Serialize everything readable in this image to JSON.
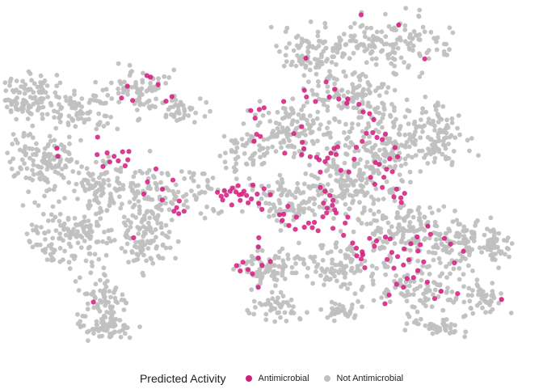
{
  "chart_data": {
    "type": "scatter",
    "title": "",
    "xlabel": "",
    "ylabel": "",
    "grid": false,
    "legend_placement": "bottom",
    "xlim": [
      0,
      100
    ],
    "ylim": [
      0,
      100
    ],
    "legend": {
      "title": "Predicted Activity"
    },
    "series": [
      {
        "name": "Antimicrobial",
        "color": "#d6197f",
        "points": [
          [
            22.8,
            77.2
          ],
          [
            23.8,
            73.1
          ],
          [
            21.7,
            73.8
          ],
          [
            27.2,
            79.8
          ],
          [
            31.2,
            74.2
          ],
          [
            30.1,
            72.9
          ],
          [
            28.6,
            77.6
          ],
          [
            26.5,
            80.2
          ],
          [
            9.5,
            59.4
          ],
          [
            9.7,
            57.1
          ],
          [
            17.1,
            57.6
          ],
          [
            19.0,
            58.1
          ],
          [
            20.3,
            57.1
          ],
          [
            21.9,
            58.4
          ],
          [
            22.9,
            56.1
          ],
          [
            23.1,
            58.5
          ],
          [
            21.1,
            55.8
          ],
          [
            19.5,
            55.5
          ],
          [
            18.2,
            54.2
          ],
          [
            22.4,
            54.4
          ],
          [
            17.2,
            62.6
          ],
          [
            28.2,
            53.5
          ],
          [
            25.9,
            46.3
          ],
          [
            26.6,
            49.8
          ],
          [
            31.4,
            50.3
          ],
          [
            29.4,
            47.7
          ],
          [
            29.4,
            44.6
          ],
          [
            33.5,
            41.4
          ],
          [
            32.1,
            42.4
          ],
          [
            32.6,
            44.3
          ],
          [
            32.5,
            40.7
          ],
          [
            31.6,
            41.4
          ],
          [
            24.0,
            33.8
          ],
          [
            16.4,
            15.4
          ],
          [
            39.8,
            46.8
          ],
          [
            40.5,
            45.7
          ],
          [
            41.5,
            46.0
          ],
          [
            42.2,
            47.1
          ],
          [
            43.3,
            46.9
          ],
          [
            44.4,
            46.3
          ],
          [
            45.3,
            45.9
          ],
          [
            46.2,
            44.9
          ],
          [
            44.8,
            47.1
          ],
          [
            43.7,
            48.7
          ],
          [
            42.6,
            48.0
          ],
          [
            41.1,
            47.3
          ],
          [
            44.1,
            44.5
          ],
          [
            45.6,
            43.8
          ],
          [
            47.3,
            46.3
          ],
          [
            48.6,
            47.8
          ],
          [
            49.8,
            46.1
          ],
          [
            46.5,
            48.9
          ],
          [
            43.9,
            46.1
          ],
          [
            40.8,
            44.6
          ],
          [
            42.5,
            43.2
          ],
          [
            47.6,
            43.6
          ],
          [
            48.2,
            41.9
          ],
          [
            43.4,
            25.8
          ],
          [
            44.1,
            24.3
          ],
          [
            45.6,
            24.7
          ],
          [
            44.6,
            26.8
          ],
          [
            47.5,
            28.0
          ],
          [
            49.8,
            27.0
          ],
          [
            46.4,
            23.5
          ],
          [
            46.1,
            70.2
          ],
          [
            47.7,
            70.5
          ],
          [
            48.6,
            71.0
          ],
          [
            46.9,
            68.0
          ],
          [
            47.2,
            63.4
          ],
          [
            46.7,
            61.4
          ],
          [
            47.9,
            62.8
          ],
          [
            52.3,
            72.8
          ],
          [
            55.7,
            65.6
          ],
          [
            54.2,
            63.6
          ],
          [
            55.8,
            61.1
          ],
          [
            52.5,
            58.0
          ],
          [
            55.7,
            57.6
          ],
          [
            56.1,
            59.3
          ],
          [
            57.3,
            57.0
          ],
          [
            58.5,
            56.8
          ],
          [
            59.0,
            56.1
          ],
          [
            60.1,
            55.6
          ],
          [
            60.6,
            56.6
          ],
          [
            61.2,
            58.0
          ],
          [
            61.8,
            59.4
          ],
          [
            62.5,
            59.8
          ],
          [
            62.2,
            57.6
          ],
          [
            59.2,
            52.6
          ],
          [
            63.1,
            53.1
          ],
          [
            64.6,
            52.6
          ],
          [
            65.6,
            56.3
          ],
          [
            66.0,
            59.7
          ],
          [
            67.1,
            61.4
          ],
          [
            67.9,
            63.7
          ],
          [
            69.1,
            63.9
          ],
          [
            69.9,
            62.5
          ],
          [
            70.9,
            61.9
          ],
          [
            71.5,
            63.5
          ],
          [
            73.3,
            59.6
          ],
          [
            73.8,
            57.0
          ],
          [
            72.3,
            56.4
          ],
          [
            69.6,
            55.3
          ],
          [
            70.3,
            54.8
          ],
          [
            71.7,
            53.4
          ],
          [
            72.8,
            52.7
          ],
          [
            71.2,
            51.1
          ],
          [
            68.7,
            51.1
          ],
          [
            69.5,
            49.1
          ],
          [
            70.9,
            48.2
          ],
          [
            73.6,
            47.7
          ],
          [
            75.1,
            46.5
          ],
          [
            74.4,
            45.2
          ],
          [
            73.1,
            45.5
          ],
          [
            74.5,
            43.9
          ],
          [
            56.2,
            76.0
          ],
          [
            56.6,
            74.1
          ],
          [
            58.3,
            72.8
          ],
          [
            60.3,
            78.4
          ],
          [
            60.9,
            74.1
          ],
          [
            61.9,
            76.3
          ],
          [
            62.7,
            73.5
          ],
          [
            64.2,
            72.3
          ],
          [
            64.4,
            73.5
          ],
          [
            66.5,
            72.0
          ],
          [
            67.3,
            69.8
          ],
          [
            68.5,
            69.3
          ],
          [
            69.3,
            67.6
          ],
          [
            56.5,
            85.2
          ],
          [
            66.9,
            97.6
          ],
          [
            74.0,
            94.7
          ],
          [
            78.9,
            85.0
          ],
          [
            51.5,
            40.4
          ],
          [
            52.3,
            40.5
          ],
          [
            53.1,
            42.8
          ],
          [
            52.0,
            38.7
          ],
          [
            53.3,
            37.3
          ],
          [
            54.7,
            39.7
          ],
          [
            54.5,
            36.2
          ],
          [
            56.2,
            36.8
          ],
          [
            57.0,
            38.0
          ],
          [
            57.7,
            36.7
          ],
          [
            58.1,
            38.2
          ],
          [
            58.8,
            35.8
          ],
          [
            59.7,
            39.8
          ],
          [
            60.4,
            40.9
          ],
          [
            61.5,
            43.1
          ],
          [
            59.8,
            43.7
          ],
          [
            61.6,
            36.5
          ],
          [
            61.9,
            41.8
          ],
          [
            47.6,
            33.8
          ],
          [
            47.5,
            31.2
          ],
          [
            48.2,
            25.9
          ],
          [
            47.5,
            19.6
          ],
          [
            59.2,
            48.2
          ],
          [
            60.1,
            47.1
          ],
          [
            61.0,
            45.9
          ],
          [
            61.6,
            44.5
          ],
          [
            60.5,
            42.3
          ],
          [
            62.2,
            40.9
          ],
          [
            64.4,
            39.7
          ],
          [
            63.9,
            38.0
          ],
          [
            63.6,
            34.5
          ],
          [
            65.3,
            32.3
          ],
          [
            66.0,
            30.8
          ],
          [
            67.1,
            29.8
          ],
          [
            67.2,
            28.9
          ],
          [
            66.1,
            28.6
          ],
          [
            66.9,
            27.7
          ],
          [
            67.6,
            25.2
          ],
          [
            69.4,
            31.4
          ],
          [
            68.5,
            33.6
          ],
          [
            69.8,
            32.9
          ],
          [
            71.5,
            34.0
          ],
          [
            72.4,
            33.5
          ],
          [
            72.7,
            29.6
          ],
          [
            71.8,
            27.6
          ],
          [
            73.1,
            25.1
          ],
          [
            73.8,
            28.4
          ],
          [
            75.0,
            30.6
          ],
          [
            74.9,
            26.0
          ],
          [
            75.9,
            27.5
          ],
          [
            76.3,
            32.1
          ],
          [
            77.5,
            34.0
          ],
          [
            78.1,
            31.8
          ],
          [
            77.6,
            30.0
          ],
          [
            78.7,
            26.9
          ],
          [
            77.6,
            24.4
          ],
          [
            76.8,
            22.4
          ],
          [
            79.5,
            37.1
          ],
          [
            80.0,
            34.8
          ],
          [
            82.6,
            33.6
          ],
          [
            83.8,
            32.0
          ],
          [
            86.2,
            29.9
          ],
          [
            84.5,
            26.6
          ],
          [
            80.8,
            16.4
          ],
          [
            82.0,
            18.5
          ],
          [
            79.4,
            21.1
          ],
          [
            85.1,
            17.8
          ],
          [
            93.4,
            16.1
          ],
          [
            74.9,
            19.6
          ],
          [
            75.6,
            22.1
          ],
          [
            73.6,
            20.5
          ],
          [
            72.2,
            17.4
          ],
          [
            71.4,
            14.9
          ]
        ]
      },
      {
        "name": "Not Antimicrobial",
        "color": "#c0c0c0",
        "points": []
      }
    ]
  }
}
